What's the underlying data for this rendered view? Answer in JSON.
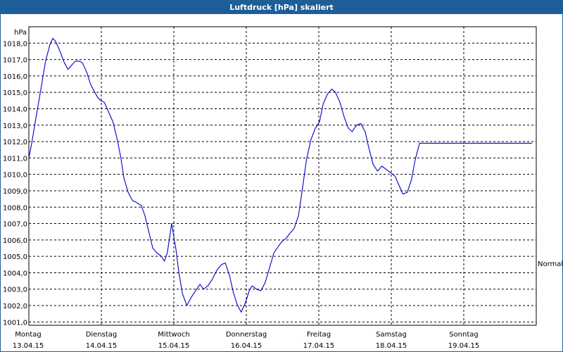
{
  "window": {
    "title": "Luftdruck [hPa] skaliert"
  },
  "colors": {
    "titlebar": "#1d5e98",
    "line": "#0000c8",
    "grid": "#000000",
    "plot_bg": "#ffffff"
  },
  "chart_data": {
    "type": "line",
    "title": "Luftdruck [hPa] skaliert",
    "ylabel": "hPa",
    "xlabel": "",
    "ylim": [
      1000.8,
      1019.0
    ],
    "xlim": [
      0,
      7
    ],
    "grid": true,
    "y_ticks": [
      1001.0,
      1002.0,
      1003.0,
      1004.0,
      1005.0,
      1006.0,
      1007.0,
      1008.0,
      1009.0,
      1010.0,
      1011.0,
      1012.0,
      1013.0,
      1014.0,
      1015.0,
      1016.0,
      1017.0,
      1018.0
    ],
    "y_tick_labels": [
      "1001,0",
      "1002,0",
      "1003,0",
      "1004,0",
      "1005,0",
      "1006,0",
      "1007,0",
      "1008,0",
      "1009,0",
      "1010,0",
      "1011,0",
      "1012,0",
      "1013,0",
      "1014,0",
      "1015,0",
      "1016,0",
      "1017,0",
      "1018,0"
    ],
    "x_ticks": [
      {
        "day": "Montag",
        "date": "13.04.15"
      },
      {
        "day": "Dienstag",
        "date": "14.04.15"
      },
      {
        "day": "Mittwoch",
        "date": "15.04.15"
      },
      {
        "day": "Donnerstag",
        "date": "16.04.15"
      },
      {
        "day": "Freitag",
        "date": "17.04.15"
      },
      {
        "day": "Samstag",
        "date": "18.04.15"
      },
      {
        "day": "Sonntag",
        "date": "19.04.15"
      }
    ],
    "reference_line": {
      "label": "Normal",
      "value": 1004.6
    },
    "series": [
      {
        "color": "#0000c8",
        "x": [
          0.0,
          0.04,
          0.1,
          0.17,
          0.23,
          0.29,
          0.33,
          0.37,
          0.43,
          0.49,
          0.54,
          0.58,
          0.64,
          0.7,
          0.74,
          0.8,
          0.85,
          0.91,
          0.95,
          0.99,
          1.04,
          1.1,
          1.16,
          1.22,
          1.27,
          1.31,
          1.37,
          1.43,
          1.48,
          1.55,
          1.6,
          1.66,
          1.71,
          1.77,
          1.83,
          1.87,
          1.91,
          1.97,
          2.03,
          2.07,
          2.12,
          2.18,
          2.24,
          2.3,
          2.36,
          2.41,
          2.47,
          2.53,
          2.6,
          2.66,
          2.71,
          2.77,
          2.82,
          2.88,
          2.93,
          2.99,
          3.04,
          3.08,
          3.14,
          3.2,
          3.26,
          3.32,
          3.38,
          3.44,
          3.49,
          3.55,
          3.6,
          3.66,
          3.72,
          3.78,
          3.83,
          3.89,
          3.95,
          4.01,
          4.06,
          4.12,
          4.18,
          4.23,
          4.29,
          4.35,
          4.41,
          4.46,
          4.52,
          4.58,
          4.64,
          4.69,
          4.75,
          4.81,
          4.87,
          4.93,
          4.99,
          5.05,
          5.1,
          5.16,
          5.22,
          5.28,
          5.33,
          5.39,
          5.45,
          5.51,
          5.57,
          5.62,
          5.68,
          5.74,
          5.8,
          5.86,
          5.9,
          5.96,
          6.02,
          6.08,
          6.14,
          6.2,
          6.25,
          6.31,
          6.37,
          6.43,
          6.49,
          6.55,
          6.61,
          6.66,
          6.72,
          6.78,
          6.84,
          6.9,
          6.96,
          7.0
        ],
        "y": [
          1011.0,
          1011.9,
          1013.5,
          1015.3,
          1016.9,
          1017.9,
          1018.3,
          1018.1,
          1017.5,
          1016.8,
          1016.4,
          1016.6,
          1016.9,
          1016.9,
          1016.8,
          1016.2,
          1015.5,
          1015.0,
          1014.7,
          1014.5,
          1014.4,
          1013.8,
          1013.2,
          1012.1,
          1011.0,
          1009.8,
          1008.9,
          1008.4,
          1008.3,
          1008.1,
          1007.5,
          1006.4,
          1005.5,
          1005.2,
          1005.0,
          1004.7,
          1005.2,
          1007.0,
          1005.4,
          1004.0,
          1002.7,
          1002.0,
          1002.5,
          1002.9,
          1003.3,
          1003.0,
          1003.2,
          1003.6,
          1004.2,
          1004.5,
          1004.6,
          1003.8,
          1002.8,
          1002.0,
          1001.6,
          1002.2,
          1002.9,
          1003.2,
          1003.0,
          1002.9,
          1003.4,
          1004.3,
          1005.2,
          1005.6,
          1005.9,
          1006.1,
          1006.4,
          1006.7,
          1007.5,
          1009.3,
          1010.9,
          1012.1,
          1012.8,
          1013.2,
          1014.3,
          1014.9,
          1015.2,
          1015.0,
          1014.4,
          1013.5,
          1012.8,
          1012.6,
          1013.0,
          1013.1,
          1012.6,
          1011.6,
          1010.6,
          1010.2,
          1010.5,
          1010.3,
          1010.1,
          1009.9,
          1009.4,
          1008.8,
          1008.9,
          1009.7,
          1010.9,
          1011.9,
          1011.9,
          1011.9,
          1011.9,
          1011.9,
          1011.9,
          1011.9,
          1011.9,
          1011.9,
          1011.9,
          1011.9,
          1011.9,
          1011.9,
          1011.9,
          1011.9,
          1011.9,
          1011.9,
          1011.9,
          1011.9,
          1011.9,
          1011.9,
          1011.9,
          1011.9,
          1011.9,
          1011.9,
          1011.9,
          1011.9,
          1011.9,
          1011.9
        ]
      }
    ]
  }
}
